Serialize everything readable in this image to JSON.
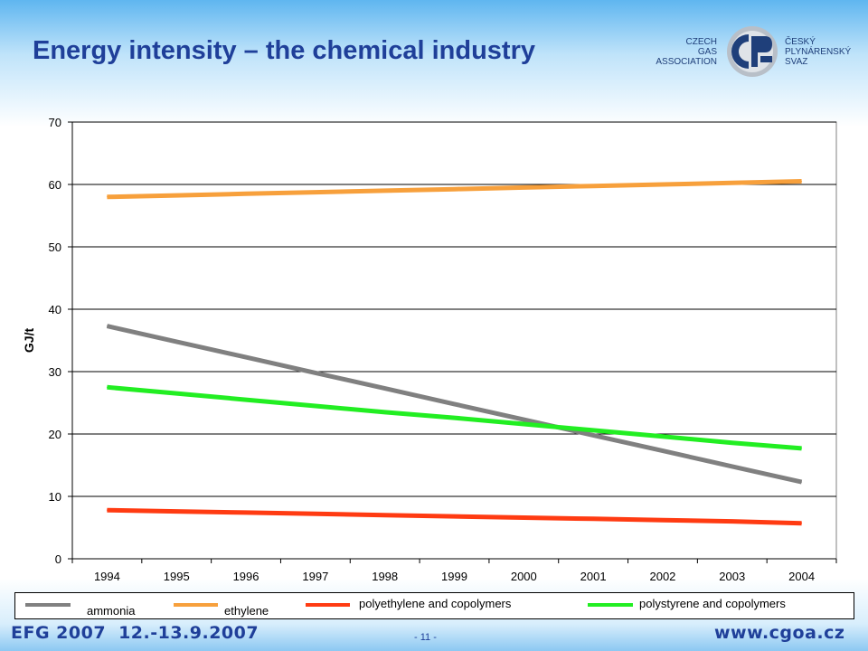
{
  "slide": {
    "title": "Energy intensity – the chemical industry",
    "logo": {
      "left_lines": [
        "CZECH",
        "GAS",
        "ASSOCIATION"
      ],
      "right_lines": [
        "ČESKÝ",
        "PLYNÁRENSKÝ",
        "SVAZ"
      ]
    },
    "footer": {
      "event": "EFG 2007",
      "dates": "12.-13.9.2007",
      "page": "- 11 -",
      "website": "www.cgoa.cz"
    }
  },
  "colors": {
    "title": "#1f3f99",
    "ammonia": "#808080",
    "ethylene": "#f7a03c",
    "polyethylene": "#ff3b12",
    "polystyrene": "#22ee22"
  },
  "chart_data": {
    "type": "line",
    "title": "",
    "xlabel": "",
    "ylabel": "GJ/t",
    "x": [
      "1994",
      "1995",
      "1996",
      "1997",
      "1998",
      "1999",
      "2000",
      "2001",
      "2002",
      "2003",
      "2004"
    ],
    "ylim": [
      0,
      70
    ],
    "yticks": [
      0,
      10,
      20,
      30,
      40,
      50,
      60,
      70
    ],
    "grid": true,
    "legend_position": "bottom",
    "series": [
      {
        "name": "ammonia",
        "color": "#808080",
        "values": [
          37.3,
          34.8,
          32.3,
          29.8,
          27.3,
          24.8,
          22.3,
          19.8,
          17.3,
          14.8,
          12.3
        ]
      },
      {
        "name": "ethylene",
        "color": "#f7a03c",
        "values": [
          58.0,
          58.25,
          58.5,
          58.75,
          59.0,
          59.25,
          59.5,
          59.75,
          60.0,
          60.25,
          60.5
        ]
      },
      {
        "name": "polyethylene and copolymers",
        "color": "#ff3b12",
        "values": [
          7.8,
          7.6,
          7.4,
          7.2,
          7.0,
          6.8,
          6.6,
          6.4,
          6.2,
          6.0,
          5.7
        ]
      },
      {
        "name": "polystyrene and copolymers",
        "color": "#22ee22",
        "values": [
          27.5,
          26.5,
          25.5,
          24.5,
          23.5,
          22.6,
          21.6,
          20.6,
          19.6,
          18.6,
          17.7
        ]
      }
    ]
  }
}
